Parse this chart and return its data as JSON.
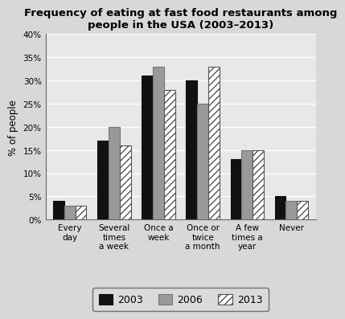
{
  "title": "Frequency of eating at fast food restaurants among\npeople in the USA (2003–2013)",
  "categories": [
    "Every\nday",
    "Several\ntimes\na week",
    "Once a\nweek",
    "Once or\ntwice\na month",
    "A few\ntimes a\nyear",
    "Never"
  ],
  "series": {
    "2003": [
      4,
      17,
      31,
      30,
      13,
      5
    ],
    "2006": [
      3,
      20,
      33,
      25,
      15,
      4
    ],
    "2013": [
      3,
      16,
      28,
      33,
      15,
      4
    ]
  },
  "bar_colors": {
    "2003": "#111111",
    "2006": "#999999",
    "2013": "#ffffff"
  },
  "bar_hatches": {
    "2003": "",
    "2006": "",
    "2013": "////"
  },
  "bar_edgecolors": {
    "2003": "#111111",
    "2006": "#777777",
    "2013": "#555555"
  },
  "ylabel": "% of people",
  "ylim": [
    0,
    40
  ],
  "yticks": [
    0,
    5,
    10,
    15,
    20,
    25,
    30,
    35,
    40
  ],
  "ytick_labels": [
    "0%",
    "5%",
    "10%",
    "15%",
    "20%",
    "25%",
    "30%",
    "35%",
    "40%"
  ],
  "background_color": "#d8d8d8",
  "plot_bg_color": "#e8e8e8",
  "title_fontsize": 9.5,
  "axis_fontsize": 8.5,
  "tick_fontsize": 7.5,
  "legend_labels": [
    "2003",
    "2006",
    "2013"
  ]
}
